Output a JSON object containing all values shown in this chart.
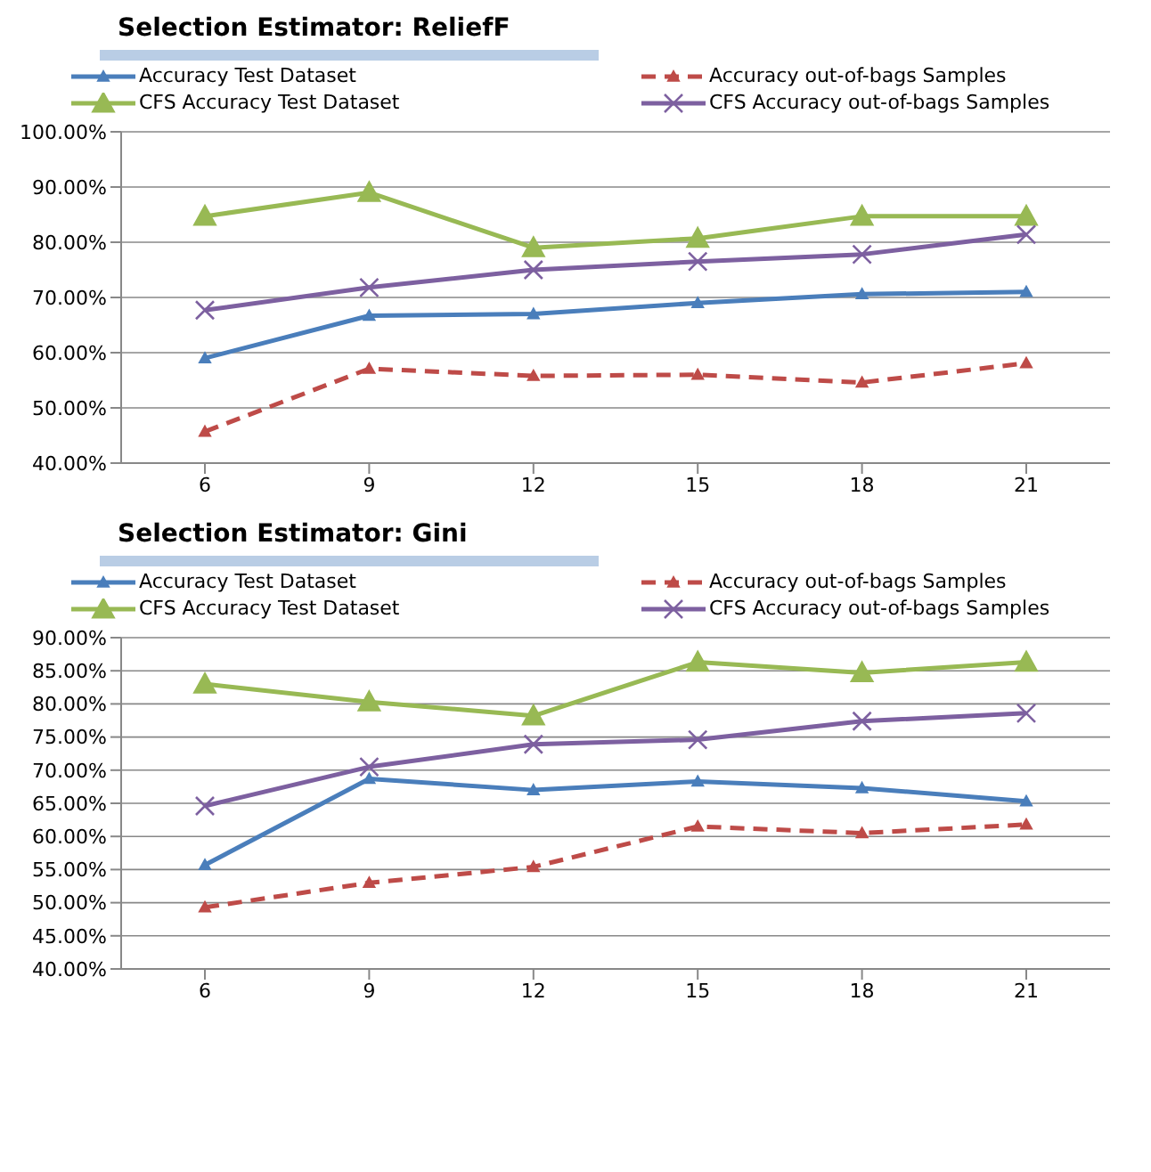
{
  "chart_data": [
    {
      "type": "line",
      "title": "Selection Estimator: ReliefF",
      "categories": [
        "6",
        "9",
        "12",
        "15",
        "18",
        "21"
      ],
      "series": [
        {
          "name": "Accuracy Test Dataset",
          "color": "#4a7ebb",
          "marker": "triangle",
          "line_style": "solid",
          "values": [
            59.0,
            66.7,
            67.0,
            69.0,
            70.6,
            71.0
          ]
        },
        {
          "name": "Accuracy out-of-bags Samples",
          "color": "#be4b48",
          "marker": "triangle",
          "line_style": "dashed",
          "values": [
            45.7,
            57.1,
            55.8,
            56.0,
            54.6,
            58.1
          ]
        },
        {
          "name": "CFS Accuracy Test Dataset",
          "color": "#98b954",
          "marker": "triangle",
          "line_style": "solid",
          "values": [
            84.7,
            89.0,
            79.0,
            80.7,
            84.7,
            84.7
          ]
        },
        {
          "name": "CFS Accuracy out-of-bags Samples",
          "color": "#7d60a0",
          "marker": "cross",
          "line_style": "solid",
          "values": [
            67.7,
            71.8,
            75.0,
            76.5,
            77.8,
            81.4
          ]
        }
      ],
      "ylim": [
        40,
        100
      ],
      "yticks": [
        {
          "value": 40,
          "label": "40.00%"
        },
        {
          "value": 50,
          "label": "50.00%"
        },
        {
          "value": 60,
          "label": "60.00%"
        },
        {
          "value": 70,
          "label": "70.00%"
        },
        {
          "value": 80,
          "label": "80.00%"
        },
        {
          "value": 90,
          "label": "90.00%"
        },
        {
          "value": 100,
          "label": "100.00%"
        }
      ],
      "grid": "y",
      "legend": "top"
    },
    {
      "type": "line",
      "title": "Selection Estimator: Gini",
      "categories": [
        "6",
        "9",
        "12",
        "15",
        "18",
        "21"
      ],
      "series": [
        {
          "name": "Accuracy Test Dataset",
          "color": "#4a7ebb",
          "marker": "triangle",
          "line_style": "solid",
          "values": [
            55.7,
            68.7,
            67.0,
            68.3,
            67.3,
            65.3
          ]
        },
        {
          "name": "Accuracy out-of-bags Samples",
          "color": "#be4b48",
          "marker": "triangle",
          "line_style": "dashed",
          "values": [
            49.3,
            53.0,
            55.4,
            61.5,
            60.5,
            61.8
          ]
        },
        {
          "name": "CFS Accuracy Test Dataset",
          "color": "#98b954",
          "marker": "triangle",
          "line_style": "solid",
          "values": [
            83.0,
            80.3,
            78.2,
            86.3,
            84.7,
            86.3
          ]
        },
        {
          "name": "CFS Accuracy out-of-bags Samples",
          "color": "#7d60a0",
          "marker": "cross",
          "line_style": "solid",
          "values": [
            64.6,
            70.5,
            73.9,
            74.6,
            77.4,
            78.6
          ]
        }
      ],
      "ylim": [
        40,
        90
      ],
      "yticks": [
        {
          "value": 40,
          "label": "40.00%"
        },
        {
          "value": 45,
          "label": "45.00%"
        },
        {
          "value": 50,
          "label": "50.00%"
        },
        {
          "value": 55,
          "label": "55.00%"
        },
        {
          "value": 60,
          "label": "60.00%"
        },
        {
          "value": 65,
          "label": "65.00%"
        },
        {
          "value": 70,
          "label": "70.00%"
        },
        {
          "value": 75,
          "label": "75.00%"
        },
        {
          "value": 80,
          "label": "80.00%"
        },
        {
          "value": 85,
          "label": "85.00%"
        },
        {
          "value": 90,
          "label": "90.00%"
        }
      ],
      "grid": "y",
      "legend": "top"
    }
  ]
}
